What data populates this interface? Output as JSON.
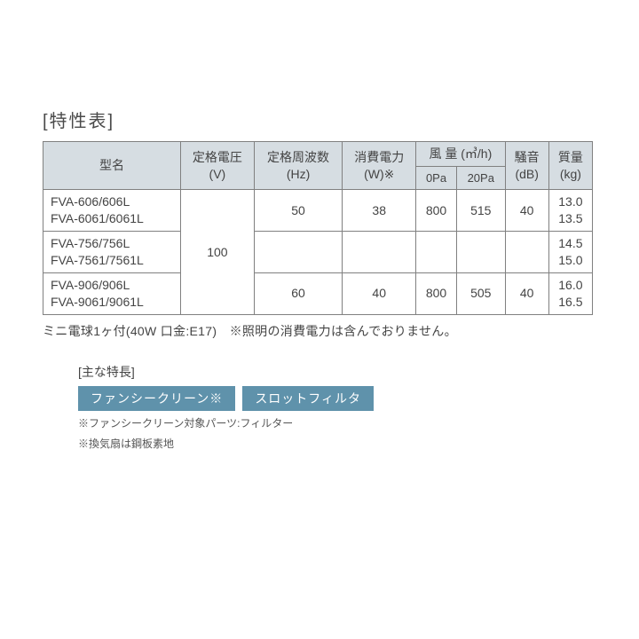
{
  "title": "[特性表]",
  "headers": {
    "model": "型名",
    "voltage": "定格電圧\n(V)",
    "freq": "定格周波数\n(Hz)",
    "power": "消費電力\n(W)※",
    "airflow": "風 量 (㎥/h)",
    "airflow_0": "0Pa",
    "airflow_20": "20Pa",
    "noise": "騒音\n(dB)",
    "mass": "質量\n(kg)"
  },
  "voltage_value": "100",
  "rows": [
    {
      "model_a": "FVA-606/606L",
      "model_b": "FVA-6061/6061L",
      "freq": "50",
      "power": "38",
      "air0": "800",
      "air20": "515",
      "noise": "40",
      "mass_a": "13.0",
      "mass_b": "13.5"
    },
    {
      "model_a": "FVA-756/756L",
      "model_b": "FVA-7561/7561L",
      "freq": "",
      "power": "",
      "air0": "",
      "air20": "",
      "noise": "",
      "mass_a": "14.5",
      "mass_b": "15.0"
    },
    {
      "model_a": "FVA-906/906L",
      "model_b": "FVA-9061/9061L",
      "freq": "60",
      "power": "40",
      "air0": "800",
      "air20": "505",
      "noise": "40",
      "mass_a": "16.0",
      "mass_b": "16.5"
    }
  ],
  "footnote": "ミニ電球1ヶ付(40W 口金:E17)　※照明の消費電力は含んでおりません。",
  "features_title": "[主な特長]",
  "badges": [
    "ファンシークリーン※",
    "スロットフィルタ"
  ],
  "small_notes": [
    "※ファンシークリーン対象パーツ:フィルター",
    "※換気扇は鋼板素地"
  ],
  "colors": {
    "header_bg": "#d6dde2",
    "border": "#808080",
    "badge_bg": "#5f92ab",
    "badge_text": "#ffffff",
    "text": "#444444"
  }
}
